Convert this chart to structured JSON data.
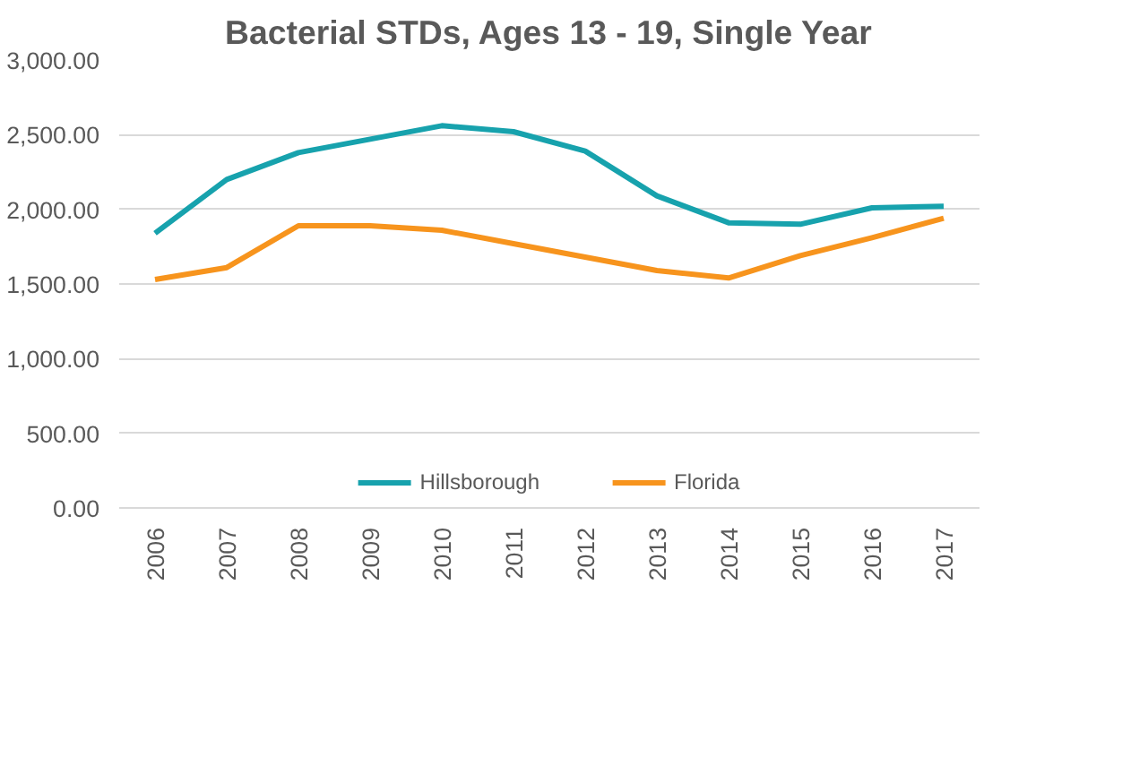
{
  "chart_data": {
    "type": "line",
    "title": "Bacterial STDs, Ages 13 - 19, Single Year",
    "categories": [
      "2006",
      "2007",
      "2008",
      "2009",
      "2010",
      "2011",
      "2012",
      "2013",
      "2014",
      "2015",
      "2016",
      "2017"
    ],
    "series": [
      {
        "name": "Hillsborough",
        "color": "#17a2ad",
        "values": [
          1840,
          2200,
          2380,
          2470,
          2560,
          2520,
          2390,
          2090,
          1910,
          1900,
          2010,
          2020
        ]
      },
      {
        "name": "Florida",
        "color": "#f7941d",
        "values": [
          1530,
          1610,
          1890,
          1890,
          1860,
          1770,
          1680,
          1590,
          1540,
          1690,
          1810,
          1940
        ]
      }
    ],
    "ylim": [
      0,
      3000
    ],
    "yticks": [
      {
        "value": 0,
        "label": "0.00"
      },
      {
        "value": 500,
        "label": "500.00"
      },
      {
        "value": 1000,
        "label": "1,000.00"
      },
      {
        "value": 1500,
        "label": "1,500.00"
      },
      {
        "value": 2000,
        "label": "2,000.00"
      },
      {
        "value": 2500,
        "label": "2,500.00"
      },
      {
        "value": 3000,
        "label": "3,000.00"
      }
    ],
    "grid": "y",
    "legend": "bottom",
    "marker": "none",
    "line_style": "solid"
  }
}
